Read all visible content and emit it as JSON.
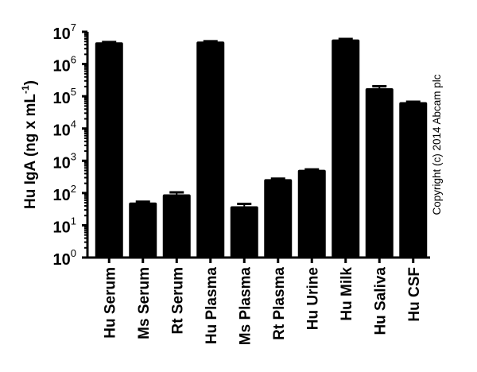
{
  "chart_data": {
    "type": "bar",
    "title": "",
    "xlabel": "",
    "ylabel": "Hu IgA (ng x mL",
    "ylabel_sup": "-1",
    "ylabel_close": ")",
    "yscale": "log",
    "ylim": [
      1,
      10000000
    ],
    "yticks": [
      {
        "base": "10",
        "exp": "0"
      },
      {
        "base": "10",
        "exp": "1"
      },
      {
        "base": "10",
        "exp": "2"
      },
      {
        "base": "10",
        "exp": "3"
      },
      {
        "base": "10",
        "exp": "4"
      },
      {
        "base": "10",
        "exp": "5"
      },
      {
        "base": "10",
        "exp": "6"
      },
      {
        "base": "10",
        "exp": "7"
      }
    ],
    "categories": [
      "Hu Serum",
      "Ms Serum",
      "Rt Serum",
      "Hu Plasma",
      "Ms Plasma",
      "Rt Plasma",
      "Hu Urine",
      "Hu Milk",
      "Hu Saliva",
      "Hu CSF"
    ],
    "values": [
      4700000,
      51,
      91,
      5000000,
      39,
      270,
      525,
      5800000,
      178000,
      66000
    ],
    "error_upper": [
      4800000,
      54,
      105,
      5100000,
      46,
      280,
      540,
      6000000,
      205000,
      68000
    ],
    "bar_color": "#000000",
    "grid": false,
    "annotation": "Copyright (c) 2014 Abcam plc"
  }
}
